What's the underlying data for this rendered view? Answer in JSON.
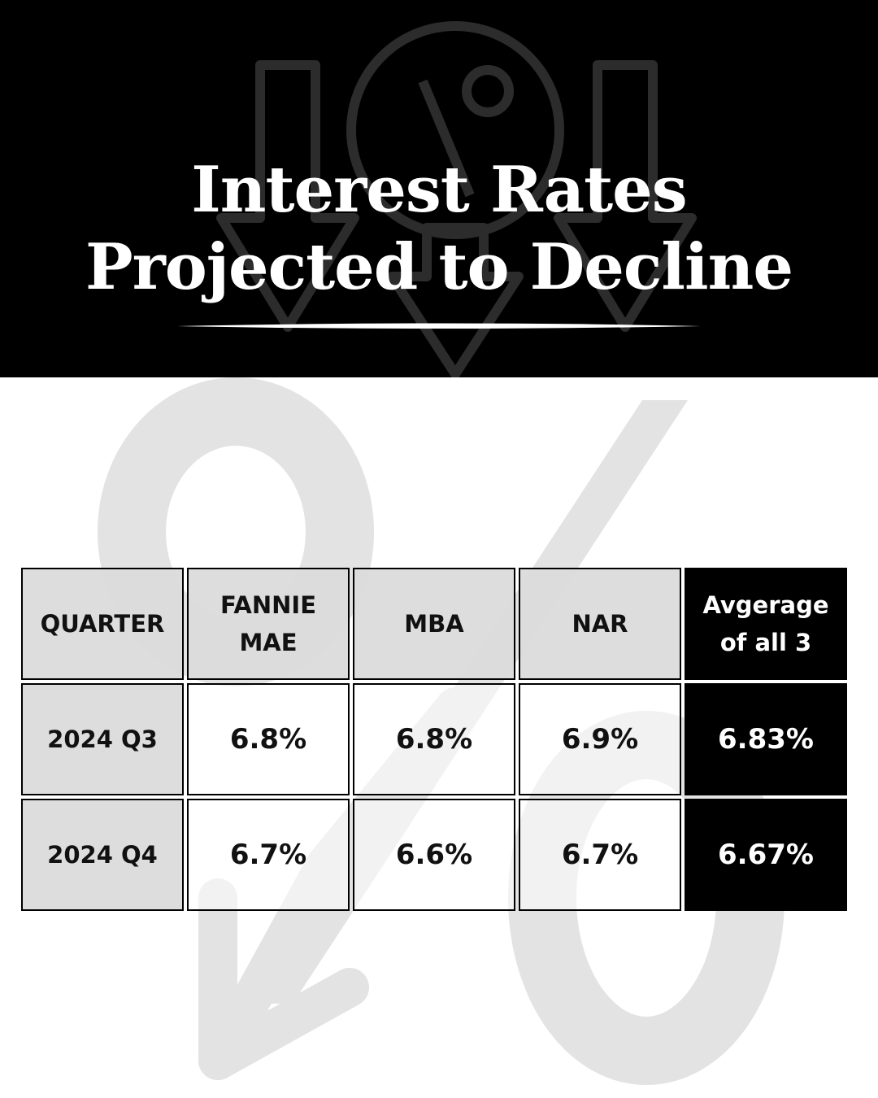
{
  "header": {
    "title_line1": "Interest Rates",
    "title_line2": "Projected to Decline",
    "background_color": "#000000",
    "text_color": "#ffffff",
    "decor_icon": "percent-down-arrows-icon"
  },
  "background": {
    "decor_icon": "percent-down-arrow-icon",
    "decor_color": "#e3e3e3"
  },
  "table": {
    "headers": [
      "QUARTER",
      "FANNIE MAE",
      "MBA",
      "NAR",
      "Avgerage of all 3"
    ],
    "rows": [
      {
        "quarter": "2024 Q3",
        "fannie_mae": "6.8%",
        "mba": "6.8%",
        "nar": "6.9%",
        "average": "6.83%"
      },
      {
        "quarter": "2024 Q4",
        "fannie_mae": "6.7%",
        "mba": "6.6%",
        "nar": "6.7%",
        "average": "6.67%"
      }
    ],
    "colors": {
      "header_cell": "#dcdcdc",
      "value_cell": "#ffffff",
      "highlight_cell": "#000000"
    }
  }
}
